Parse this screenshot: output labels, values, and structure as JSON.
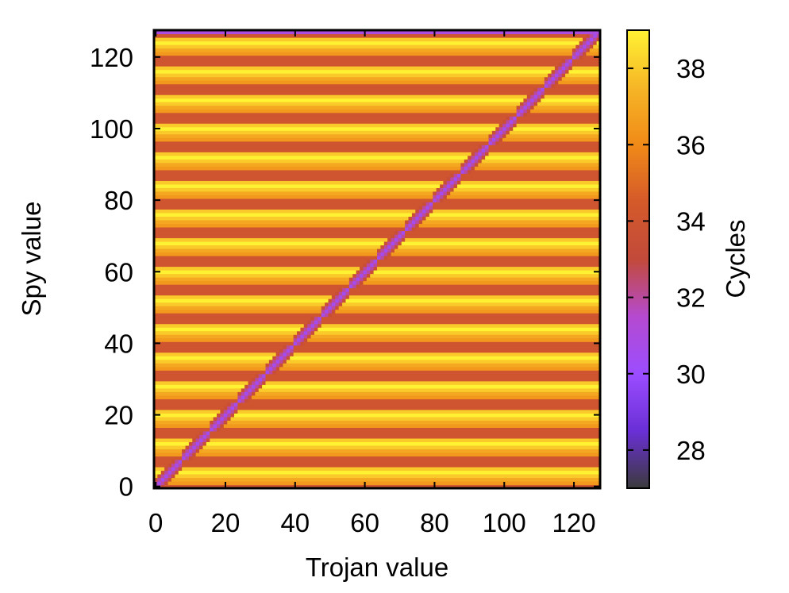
{
  "chart_data": {
    "type": "heatmap",
    "title": "",
    "xlabel": "Trojan value",
    "ylabel": "Spy value",
    "colorbar_label": "Cycles",
    "xlim": [
      0,
      127
    ],
    "ylim": [
      0,
      127
    ],
    "x_ticks": [
      0,
      20,
      40,
      60,
      80,
      100,
      120
    ],
    "y_ticks": [
      0,
      20,
      40,
      60,
      80,
      100,
      120
    ],
    "colorbar_range": [
      27,
      39
    ],
    "colorbar_ticks": [
      28,
      30,
      32,
      34,
      36,
      38
    ],
    "colorscale": [
      "#3b3b3b",
      "#6a2fd6",
      "#9b4dff",
      "#b54ad0",
      "#c24a3a",
      "#d45a2a",
      "#f08a18",
      "#f6b626",
      "#fff233"
    ],
    "row_cycle_pattern": [
      34,
      36.5,
      37,
      38,
      39,
      38,
      34,
      34
    ],
    "top_row_value": 31,
    "diagonal": {
      "band_length": 8,
      "min_value": 30.5,
      "max_value": 32,
      "wrap_band_value": 33.5
    },
    "grid": false,
    "legend": "none"
  }
}
